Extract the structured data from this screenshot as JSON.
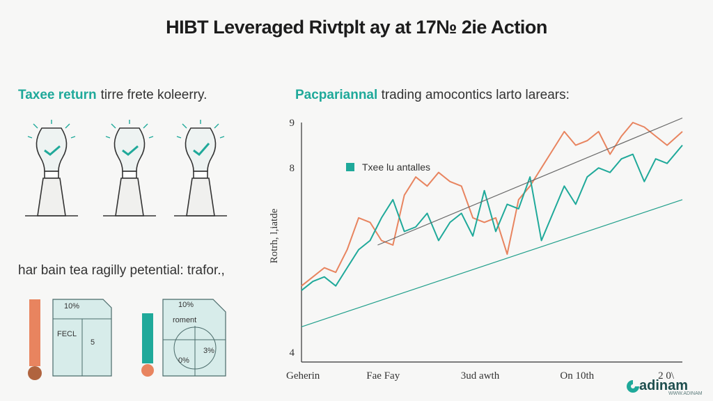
{
  "title": "HIBT Leveraged Rivtplt ay at 17№ 2ie Action",
  "left_panel": {
    "heading_accent": "Taxee return",
    "heading_rest": "tirre frete koleerry.",
    "subheading": "har bain tea ragilly petential: trafor.,",
    "mini_left": {
      "top_label": "10%",
      "mid_label": "FECL",
      "bottom_label": "5"
    },
    "mini_right": {
      "top_label": "10%",
      "mid_label": "roment",
      "bl_label": "0%",
      "br_label": "3%"
    }
  },
  "colors": {
    "teal": "#1fa99a",
    "orange": "#e8845f",
    "gray": "#666666",
    "green": "#1e9e8a"
  },
  "right_panel": {
    "heading_accent": "Pacpariannal",
    "heading_rest": "trading amocontics larto larears:"
  },
  "chart_data": {
    "type": "line",
    "title": "Pacpariannal trading amocontics larto larears:",
    "ylabel": "Rotrh, l,iatde",
    "xlabel": "",
    "ylim": [
      4,
      9
    ],
    "yticks": [
      {
        "v": 9,
        "label": "9"
      },
      {
        "v": 8,
        "label": "8"
      },
      {
        "v": 4,
        "label": "4"
      }
    ],
    "x_tick_labels": [
      "Geher­in",
      "Fae Fay",
      "3ud awth",
      "On 10th",
      "2 0\\"
    ],
    "xlim": [
      0,
      100
    ],
    "legend": {
      "text": "Txee lu antalles",
      "position": "top-left"
    },
    "grid": false,
    "series": [
      {
        "color": "#e8845f",
        "x": [
          0,
          3,
          6,
          9,
          12,
          15,
          18,
          21,
          24,
          27,
          30,
          33,
          36,
          39,
          42,
          45,
          48,
          51,
          54,
          57,
          60,
          63,
          66,
          69,
          72,
          75,
          78,
          81,
          84,
          87,
          90,
          93,
          96,
          100
        ],
        "values": [
          5.4,
          5.6,
          5.8,
          5.7,
          6.2,
          6.9,
          6.8,
          6.4,
          6.3,
          7.4,
          7.8,
          7.6,
          7.9,
          7.7,
          7.6,
          6.9,
          6.8,
          6.9,
          6.1,
          7.3,
          7.6,
          8.0,
          8.4,
          8.8,
          8.5,
          8.6,
          8.8,
          8.3,
          8.7,
          9.0,
          8.9,
          8.7,
          8.5,
          8.8
        ]
      },
      {
        "color": "#1fa99a",
        "x": [
          0,
          3,
          6,
          9,
          12,
          15,
          18,
          21,
          24,
          27,
          30,
          33,
          36,
          39,
          42,
          45,
          48,
          51,
          54,
          57,
          60,
          63,
          66,
          69,
          72,
          75,
          78,
          81,
          84,
          87,
          90,
          93,
          96,
          100
        ],
        "values": [
          5.3,
          5.5,
          5.6,
          5.4,
          5.8,
          6.2,
          6.4,
          6.9,
          7.3,
          6.6,
          6.7,
          7.0,
          6.4,
          6.8,
          7.0,
          6.5,
          7.5,
          6.6,
          7.2,
          7.1,
          7.8,
          6.4,
          7.0,
          7.6,
          7.2,
          7.8,
          8.0,
          7.9,
          8.2,
          8.3,
          7.7,
          8.2,
          8.1,
          8.5
        ]
      },
      {
        "color": "#666666",
        "x": [
          20,
          100
        ],
        "values": [
          6.3,
          9.1
        ]
      },
      {
        "color": "#1e9e8a",
        "x": [
          0,
          100
        ],
        "values": [
          4.5,
          7.3
        ]
      }
    ]
  },
  "logo": {
    "text": "adinam",
    "sub": "WWW.ADINAM"
  }
}
